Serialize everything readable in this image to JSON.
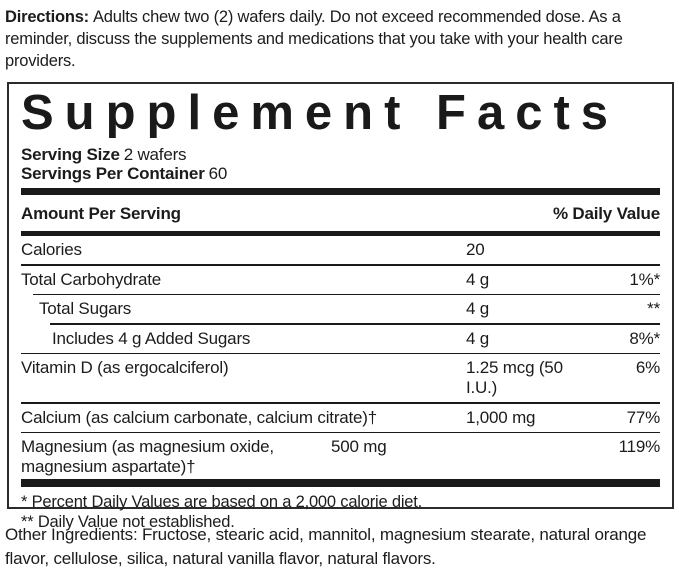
{
  "directions": {
    "label": "Directions:",
    "text": "Adults chew two (2) wafers daily. Do not exceed recommended dose. As a reminder, discuss the supplements and medications that you take with your health care providers."
  },
  "panel": {
    "title": "Supplement Facts",
    "serving_size_label": "Serving Size",
    "serving_size_value": "2 wafers",
    "servings_per_container_label": "Servings Per Container",
    "servings_per_container_value": "60",
    "header": {
      "amount_label": "Amount Per Serving",
      "dv_label": "% Daily Value"
    },
    "rows": [
      {
        "name": "Calories",
        "amount": "20",
        "dv": ""
      },
      {
        "name": "Total Carbohydrate",
        "amount": "4 g",
        "dv": "1%*"
      },
      {
        "name": "Total Sugars",
        "amount": "4 g",
        "dv": "**"
      },
      {
        "name": "Includes 4 g Added Sugars",
        "amount": "4 g",
        "dv": "8%*"
      },
      {
        "name": "Vitamin D (as ergocalciferol)",
        "amount": "1.25 mcg (50 I.U.)",
        "dv": "6%"
      },
      {
        "name": "Calcium (as calcium carbonate, calcium citrate)†",
        "amount": "1,000 mg",
        "dv": "77%"
      },
      {
        "name": "Magnesium (as magnesium oxide, magnesium aspartate)†",
        "amount": "500 mg",
        "dv": "119%"
      }
    ],
    "footnotes": [
      "* Percent Daily Values are based on a 2,000 calorie diet.",
      "** Daily Value not established."
    ]
  },
  "other_ingredients": {
    "text": "Other Ingredients: Fructose, stearic acid, mannitol, magnesium stearate, natural orange flavor, cellulose, silica, natural vanilla flavor, natural flavors."
  }
}
